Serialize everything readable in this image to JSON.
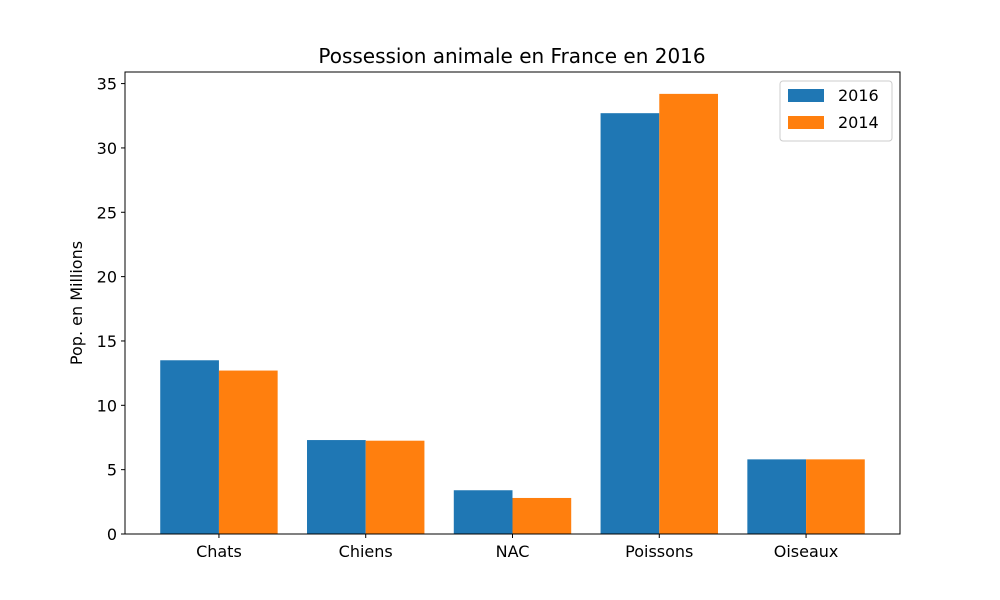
{
  "chart_data": {
    "type": "bar",
    "title": "Possession animale en France en 2016",
    "xlabel": "",
    "ylabel": "Pop. en Millions",
    "categories": [
      "Chats",
      "Chiens",
      "NAC",
      "Poissons",
      "Oiseaux"
    ],
    "series": [
      {
        "name": "2016",
        "color": "#1f77b4",
        "values": [
          13.5,
          7.3,
          3.4,
          32.7,
          5.8
        ]
      },
      {
        "name": "2014",
        "color": "#ff7f0e",
        "values": [
          12.7,
          7.25,
          2.8,
          34.2,
          5.8
        ]
      }
    ],
    "ylim": [
      0,
      35.9
    ],
    "yticks": [
      0,
      5,
      10,
      15,
      20,
      25,
      30,
      35
    ],
    "legend": "top-right",
    "grid": false
  }
}
